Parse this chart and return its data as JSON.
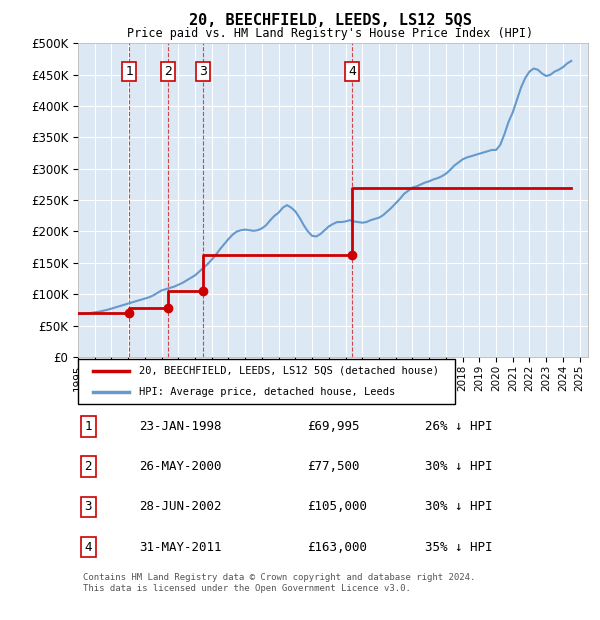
{
  "title": "20, BEECHFIELD, LEEDS, LS12 5QS",
  "subtitle": "Price paid vs. HM Land Registry's House Price Index (HPI)",
  "bg_color": "#dce9f5",
  "plot_bg_color": "#dce9f5",
  "ylim": [
    0,
    500000
  ],
  "yticks": [
    0,
    50000,
    100000,
    150000,
    200000,
    250000,
    300000,
    350000,
    400000,
    450000,
    500000
  ],
  "xlim_start": 1995.0,
  "xlim_end": 2025.5,
  "sales": [
    {
      "date_x": 1998.06,
      "price": 69995,
      "label": "1"
    },
    {
      "date_x": 2000.4,
      "price": 77500,
      "label": "2"
    },
    {
      "date_x": 2002.49,
      "price": 105000,
      "label": "3"
    },
    {
      "date_x": 2011.41,
      "price": 163000,
      "label": "4"
    }
  ],
  "sale_color": "#cc0000",
  "hpi_color": "#6699cc",
  "legend_sale_label": "20, BEECHFIELD, LEEDS, LS12 5QS (detached house)",
  "legend_hpi_label": "HPI: Average price, detached house, Leeds",
  "table_rows": [
    {
      "num": "1",
      "date": "23-JAN-1998",
      "price": "£69,995",
      "hpi": "26% ↓ HPI"
    },
    {
      "num": "2",
      "date": "26-MAY-2000",
      "price": "£77,500",
      "hpi": "30% ↓ HPI"
    },
    {
      "num": "3",
      "date": "28-JUN-2002",
      "price": "£105,000",
      "hpi": "30% ↓ HPI"
    },
    {
      "num": "4",
      "date": "31-MAY-2011",
      "price": "£163,000",
      "hpi": "35% ↓ HPI"
    }
  ],
  "footer": "Contains HM Land Registry data © Crown copyright and database right 2024.\nThis data is licensed under the Open Government Licence v3.0.",
  "hpi_data_x": [
    1995.0,
    1995.25,
    1995.5,
    1995.75,
    1996.0,
    1996.25,
    1996.5,
    1996.75,
    1997.0,
    1997.25,
    1997.5,
    1997.75,
    1998.0,
    1998.25,
    1998.5,
    1998.75,
    1999.0,
    1999.25,
    1999.5,
    1999.75,
    2000.0,
    2000.25,
    2000.5,
    2000.75,
    2001.0,
    2001.25,
    2001.5,
    2001.75,
    2002.0,
    2002.25,
    2002.5,
    2002.75,
    2003.0,
    2003.25,
    2003.5,
    2003.75,
    2004.0,
    2004.25,
    2004.5,
    2004.75,
    2005.0,
    2005.25,
    2005.5,
    2005.75,
    2006.0,
    2006.25,
    2006.5,
    2006.75,
    2007.0,
    2007.25,
    2007.5,
    2007.75,
    2008.0,
    2008.25,
    2008.5,
    2008.75,
    2009.0,
    2009.25,
    2009.5,
    2009.75,
    2010.0,
    2010.25,
    2010.5,
    2010.75,
    2011.0,
    2011.25,
    2011.5,
    2011.75,
    2012.0,
    2012.25,
    2012.5,
    2012.75,
    2013.0,
    2013.25,
    2013.5,
    2013.75,
    2014.0,
    2014.25,
    2014.5,
    2014.75,
    2015.0,
    2015.25,
    2015.5,
    2015.75,
    2016.0,
    2016.25,
    2016.5,
    2016.75,
    2017.0,
    2017.25,
    2017.5,
    2017.75,
    2018.0,
    2018.25,
    2018.5,
    2018.75,
    2019.0,
    2019.25,
    2019.5,
    2019.75,
    2020.0,
    2020.25,
    2020.5,
    2020.75,
    2021.0,
    2021.25,
    2021.5,
    2021.75,
    2022.0,
    2022.25,
    2022.5,
    2022.75,
    2023.0,
    2023.25,
    2023.5,
    2023.75,
    2024.0,
    2024.25,
    2024.5
  ],
  "hpi_data_y": [
    68000,
    68500,
    69000,
    70000,
    71000,
    72000,
    73500,
    75000,
    77000,
    79000,
    81000,
    83000,
    85000,
    87000,
    89000,
    91000,
    93000,
    95000,
    98000,
    102000,
    106000,
    108000,
    110000,
    112000,
    115000,
    118000,
    122000,
    126000,
    130000,
    136000,
    142000,
    148000,
    155000,
    163000,
    172000,
    180000,
    188000,
    195000,
    200000,
    202000,
    203000,
    202000,
    201000,
    202000,
    205000,
    210000,
    218000,
    225000,
    230000,
    238000,
    242000,
    238000,
    232000,
    222000,
    210000,
    200000,
    193000,
    192000,
    196000,
    202000,
    208000,
    212000,
    215000,
    215000,
    216000,
    218000,
    216000,
    215000,
    214000,
    215000,
    218000,
    220000,
    222000,
    226000,
    232000,
    238000,
    245000,
    252000,
    260000,
    265000,
    270000,
    272000,
    275000,
    278000,
    280000,
    283000,
    285000,
    288000,
    292000,
    298000,
    305000,
    310000,
    315000,
    318000,
    320000,
    322000,
    324000,
    326000,
    328000,
    330000,
    330000,
    338000,
    355000,
    375000,
    390000,
    410000,
    430000,
    445000,
    455000,
    460000,
    458000,
    452000,
    448000,
    450000,
    455000,
    458000,
    462000,
    468000,
    472000
  ],
  "sale_line_x": [
    1995.0,
    1998.06,
    1998.06,
    2000.4,
    2000.4,
    2002.49,
    2002.49,
    2011.41,
    2011.41,
    2024.5
  ],
  "sale_line_y": [
    69995,
    69995,
    77500,
    77500,
    105000,
    105000,
    163000,
    163000,
    270000,
    270000
  ]
}
